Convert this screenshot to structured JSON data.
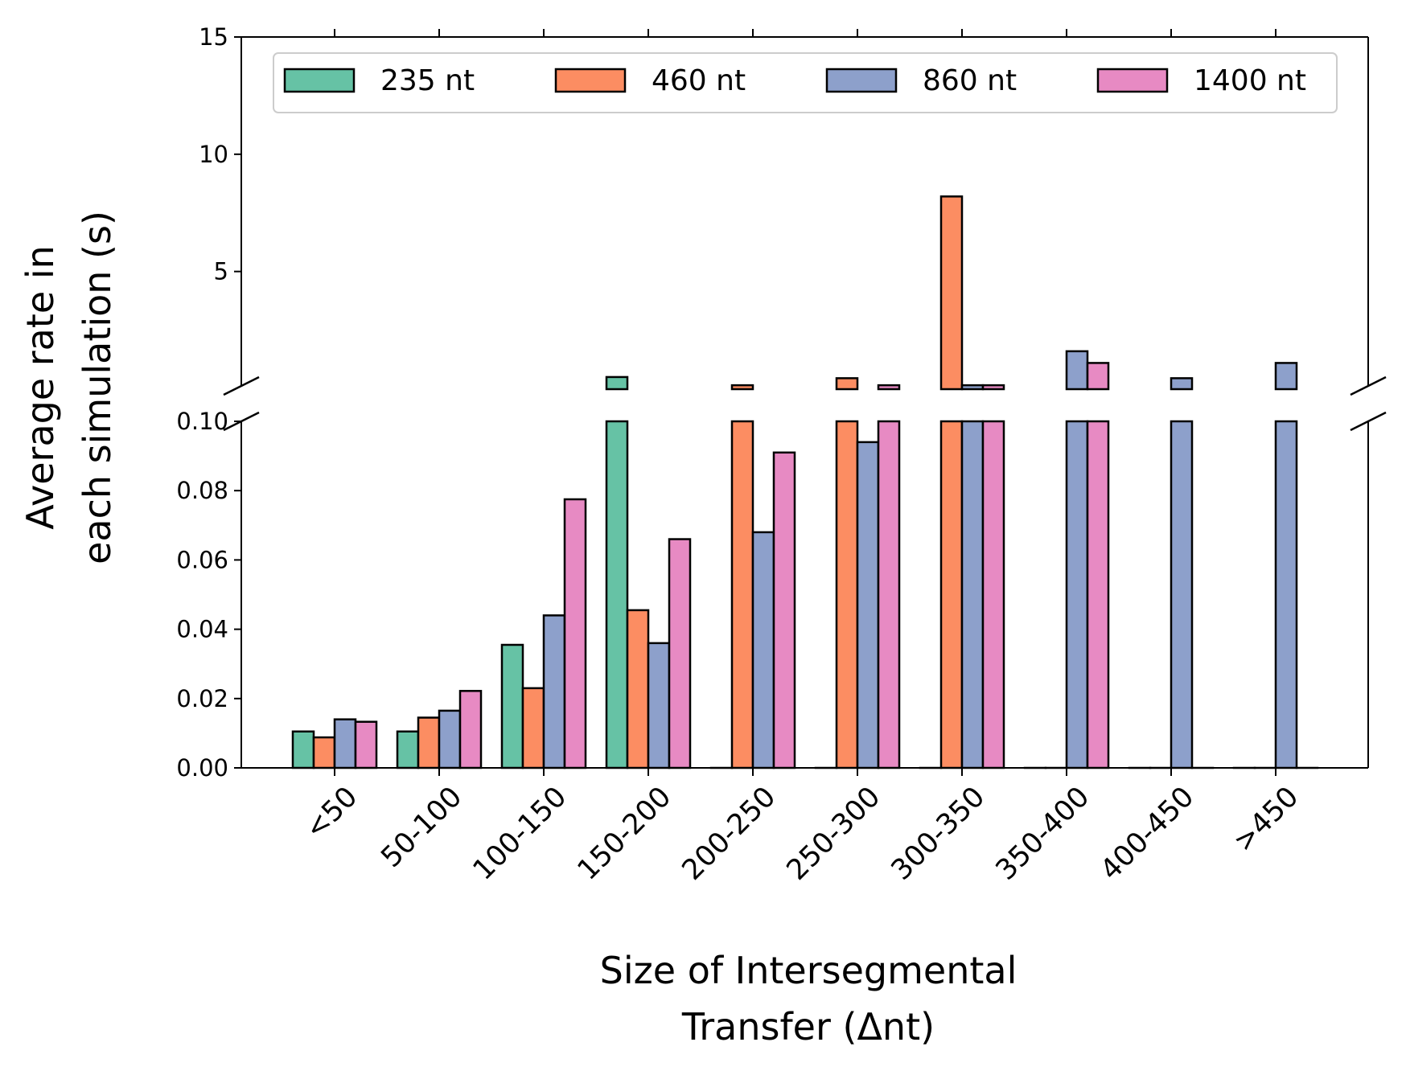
{
  "chart_data": {
    "type": "bar",
    "categories": [
      "<50",
      "50-100",
      "100-150",
      "150-200",
      "200-250",
      "250-300",
      "300-350",
      "350-400",
      "400-450",
      ">450"
    ],
    "series": [
      {
        "name": "235 nt",
        "color": "#66c2a5",
        "values": [
          0.0105,
          0.0105,
          0.0355,
          0.5,
          0.0,
          0.0,
          0.0,
          0.0,
          0.0,
          0.0
        ]
      },
      {
        "name": "460 nt",
        "color": "#fc8d62",
        "values": [
          0.0088,
          0.0145,
          0.023,
          0.0455,
          0.15,
          0.45,
          8.2,
          0.0,
          0.0,
          0.0
        ]
      },
      {
        "name": "860 nt",
        "color": "#8da0cb",
        "values": [
          0.014,
          0.0165,
          0.044,
          0.036,
          0.068,
          0.094,
          0.15,
          1.6,
          0.45,
          1.1
        ]
      },
      {
        "name": "1400 nt",
        "color": "#e78ac3",
        "values": [
          0.0133,
          0.0222,
          0.0775,
          0.066,
          0.091,
          0.15,
          0.15,
          1.1,
          0.0,
          0.0
        ]
      }
    ],
    "xlabel": [
      "Size of Intersegmental",
      "Transfer (Δnt)"
    ],
    "ylabel": [
      "Average rate in",
      "each simulation (s)"
    ],
    "axis_break": true,
    "ylim_upper": [
      0.12,
      15
    ],
    "yticks_upper": [
      "5",
      "10",
      "15"
    ],
    "yticks_upper_values": [
      5,
      10,
      15
    ],
    "ylim_lower": [
      0,
      0.1
    ],
    "yticks_lower": [
      "0.00",
      "0.02",
      "0.04",
      "0.06",
      "0.08",
      "0.10"
    ],
    "yticks_lower_values": [
      0,
      0.02,
      0.04,
      0.06,
      0.08,
      0.1
    ],
    "legend_position": "top",
    "grid": false
  }
}
